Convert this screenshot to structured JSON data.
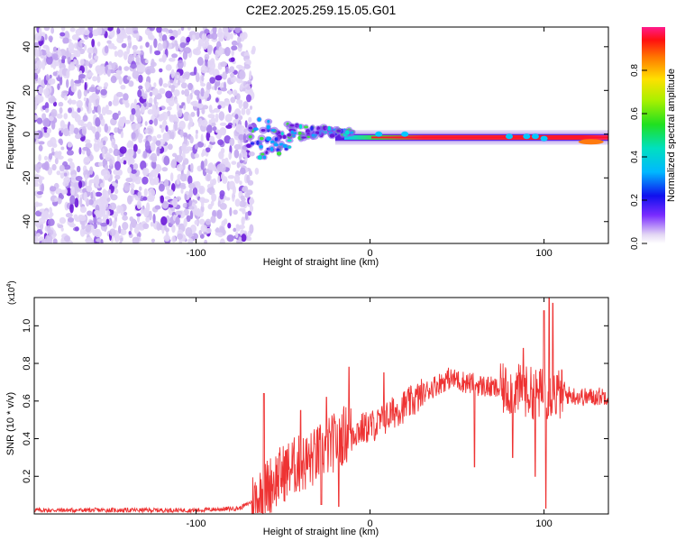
{
  "title": "C2E2.2025.259.15.05.G01",
  "chart_data": [
    {
      "type": "heatmap",
      "name": "spectrogram",
      "xlabel": "Height of straight line (km)",
      "ylabel": "Frequency (Hz)",
      "xlim": [
        -193,
        137
      ],
      "ylim": [
        -50,
        49
      ],
      "xticks": [
        -100,
        0,
        100
      ],
      "yticks": [
        40,
        20,
        0,
        -20,
        -40
      ],
      "colorbar": {
        "label": "Normalized spectral amplitude",
        "range": [
          0.0,
          1.0
        ],
        "ticks": [
          0.0,
          0.2,
          0.4,
          0.6,
          0.8
        ]
      },
      "regions": [
        {
          "description": "scattered noise",
          "x": [
            -193,
            -68
          ],
          "freq": [
            -50,
            49
          ],
          "amplitude": 0.12
        },
        {
          "description": "onset clusters",
          "x": [
            -70,
            -20
          ],
          "freq": [
            -12,
            12
          ],
          "amplitude": 0.45
        },
        {
          "description": "carrier line",
          "x": [
            -20,
            137
          ],
          "freq": [
            -4,
            1
          ],
          "amplitude": 0.98
        }
      ]
    },
    {
      "type": "line",
      "name": "snr",
      "xlabel": "Height of straight line (km)",
      "ylabel": "SNR (10 * v/v)",
      "y_multiplier": "(x10",
      "y_multiplier_exp": "4",
      "xlim": [
        -193,
        137
      ],
      "ylim": [
        0,
        1.15
      ],
      "xticks": [
        -100,
        0,
        100
      ],
      "yticks": [
        0.2,
        0.4,
        0.6,
        0.8,
        1.0
      ],
      "color": "#ee3333",
      "series_profile": [
        [
          -193,
          0.02
        ],
        [
          -150,
          0.02
        ],
        [
          -100,
          0.02
        ],
        [
          -75,
          0.03
        ],
        [
          -65,
          0.08
        ],
        [
          -55,
          0.18
        ],
        [
          -45,
          0.25
        ],
        [
          -35,
          0.28
        ],
        [
          -25,
          0.35
        ],
        [
          -15,
          0.42
        ],
        [
          -5,
          0.45
        ],
        [
          5,
          0.48
        ],
        [
          15,
          0.55
        ],
        [
          25,
          0.6
        ],
        [
          35,
          0.67
        ],
        [
          45,
          0.72
        ],
        [
          55,
          0.7
        ],
        [
          65,
          0.68
        ],
        [
          75,
          0.66
        ],
        [
          85,
          0.66
        ],
        [
          95,
          0.64
        ],
        [
          105,
          0.64
        ],
        [
          115,
          0.63
        ],
        [
          125,
          0.62
        ],
        [
          137,
          0.63
        ]
      ],
      "spikes": [
        [
          -61,
          0.64
        ],
        [
          -40,
          0.55
        ],
        [
          -25,
          0.62
        ],
        [
          -12,
          0.78
        ],
        [
          8,
          0.75
        ],
        [
          50,
          0.75
        ],
        [
          82,
          0.75
        ],
        [
          88,
          0.88
        ],
        [
          95,
          0.93
        ],
        [
          100,
          1.08
        ],
        [
          103,
          1.15
        ],
        [
          105,
          1.12
        ]
      ],
      "dips": [
        [
          -28,
          0.05
        ],
        [
          -18,
          0.04
        ],
        [
          60,
          0.25
        ],
        [
          82,
          0.3
        ],
        [
          95,
          0.2
        ],
        [
          101,
          0.03
        ]
      ]
    }
  ]
}
